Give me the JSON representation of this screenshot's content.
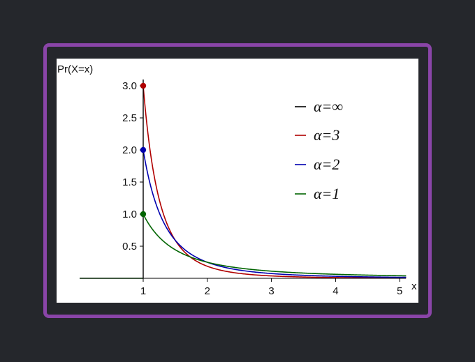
{
  "chart_data": {
    "type": "line",
    "xlabel": "x",
    "ylabel": "Pr(X=x)",
    "xlim": [
      0.1,
      5.1
    ],
    "ylim": [
      0,
      3.1
    ],
    "xticks": [
      1,
      2,
      3,
      4,
      5
    ],
    "yticks": [
      0.5,
      1.0,
      1.5,
      2.0,
      2.5,
      3.0
    ],
    "xtick_labels": [
      "1",
      "2",
      "3",
      "4",
      "5"
    ],
    "ytick_labels": [
      "0.5",
      "1.0",
      "1.5",
      "2.0",
      "2.5",
      "3.0"
    ],
    "x_m": 1,
    "legend_position": "upper-right",
    "series": [
      {
        "name": "α=∞",
        "alpha": "inf",
        "color": "#000000"
      },
      {
        "name": "α=3",
        "alpha": 3,
        "color": "#b00000"
      },
      {
        "name": "α=2",
        "alpha": 2,
        "color": "#0000b0"
      },
      {
        "name": "α=1",
        "alpha": 1,
        "color": "#006400"
      }
    ]
  }
}
